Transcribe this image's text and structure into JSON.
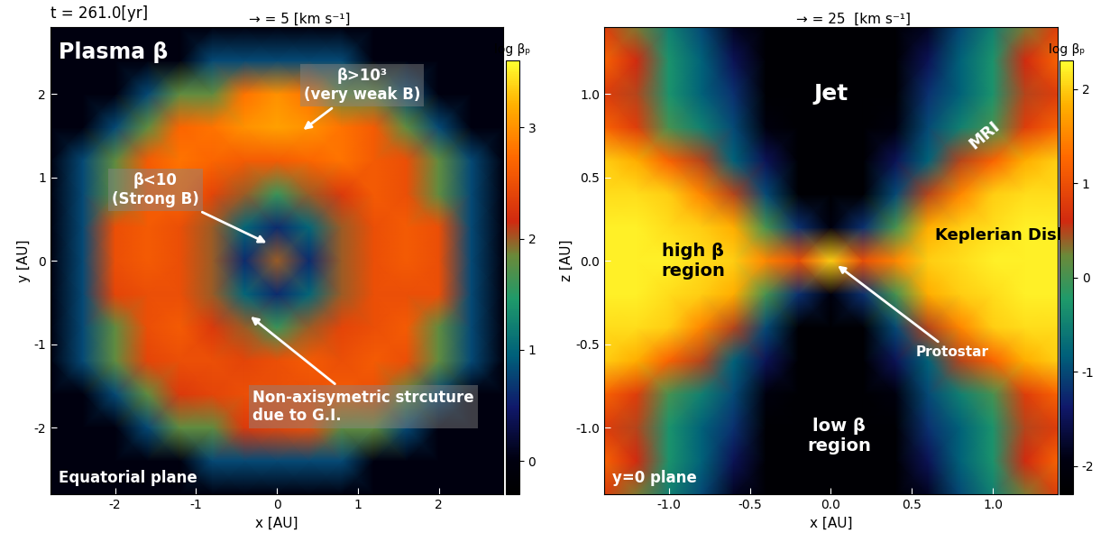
{
  "chart_data": [
    {
      "type": "heatmap",
      "time": "t = 261.0[yr]",
      "vector_key": "→ = 5 [km s⁻¹]",
      "xlabel": "x [AU]",
      "ylabel": "y [AU]",
      "xlim": [
        -2.8,
        2.8
      ],
      "ylim": [
        -2.8,
        2.8
      ],
      "xticks": [
        -2,
        -1,
        0,
        1,
        2
      ],
      "yticks": [
        -2,
        -1,
        0,
        1,
        2
      ],
      "x": [
        -2.8,
        -2.4,
        -2.0,
        -1.6,
        -1.2,
        -0.8,
        -0.4,
        0.0,
        0.4,
        0.8,
        1.2,
        1.6,
        2.0,
        2.4,
        2.8
      ],
      "y": [
        -2.8,
        -2.4,
        -2.0,
        -1.6,
        -1.2,
        -0.8,
        -0.4,
        0.0,
        0.4,
        0.8,
        1.2,
        1.6,
        2.0,
        2.4,
        2.8
      ],
      "cells": [
        [
          0,
          0,
          0,
          0,
          0,
          0,
          0,
          0,
          0,
          0,
          0,
          0,
          0,
          0,
          0
        ],
        [
          0,
          0,
          0,
          0,
          0,
          0.8,
          0.8,
          0.8,
          0.8,
          0.8,
          0,
          0,
          0,
          0,
          0
        ],
        [
          0,
          0,
          0,
          0.8,
          1.8,
          1.8,
          2.3,
          2.4,
          2.5,
          1.8,
          1.8,
          0.8,
          0,
          0,
          0
        ],
        [
          0,
          0,
          0.8,
          1.8,
          2.3,
          2.4,
          2.5,
          2.5,
          2.5,
          2.6,
          2.5,
          1.8,
          0.8,
          0,
          0
        ],
        [
          0,
          0.8,
          1.8,
          2.4,
          2.5,
          2.5,
          2.4,
          2.5,
          2.6,
          2.5,
          2.6,
          2.5,
          1.8,
          0.8,
          0
        ],
        [
          0,
          0.8,
          1.8,
          2.5,
          2.6,
          2.3,
          2.0,
          1.6,
          2.0,
          2.4,
          2.5,
          2.6,
          1.8,
          0.8,
          0
        ],
        [
          0,
          0.8,
          2.4,
          2.5,
          2.5,
          2.0,
          1.0,
          0.6,
          1.0,
          2.0,
          2.5,
          2.5,
          2.5,
          0.8,
          0
        ],
        [
          0,
          0.8,
          2.5,
          2.6,
          2.5,
          2.0,
          0.6,
          2.0,
          0.6,
          2.0,
          2.5,
          2.6,
          2.5,
          0.8,
          0
        ],
        [
          0,
          0.8,
          2.5,
          2.6,
          2.5,
          2.0,
          1.0,
          0.6,
          1.0,
          2.0,
          2.5,
          2.6,
          2.5,
          0.8,
          0
        ],
        [
          0,
          0.8,
          1.8,
          2.6,
          2.7,
          2.4,
          2.0,
          1.6,
          2.0,
          2.3,
          2.6,
          2.5,
          1.8,
          0.8,
          0
        ],
        [
          0,
          0.8,
          1.8,
          2.6,
          2.8,
          2.7,
          2.6,
          2.6,
          2.7,
          2.8,
          2.6,
          2.5,
          1.8,
          0.8,
          0
        ],
        [
          0,
          0,
          0.8,
          1.8,
          2.7,
          2.8,
          3.0,
          3.1,
          3.0,
          2.8,
          2.6,
          1.8,
          0.8,
          0,
          0
        ],
        [
          0,
          0,
          0,
          0.8,
          1.8,
          1.8,
          2.8,
          3.0,
          2.8,
          1.8,
          1.8,
          0.8,
          0,
          0,
          0
        ],
        [
          0,
          0,
          0,
          0,
          0,
          0.8,
          0.8,
          0.8,
          0.8,
          0.8,
          0,
          0,
          0,
          0,
          0
        ],
        [
          0,
          0,
          0,
          0,
          0,
          0,
          0,
          0,
          0,
          0,
          0,
          0,
          0,
          0,
          0
        ]
      ],
      "colorbar": {
        "label": "log βₚ",
        "range": [
          -0.3,
          3.6
        ],
        "ticks": [
          0,
          1,
          2,
          3
        ]
      },
      "annotations": [
        "Plasma β",
        "β>10³\n(very weak B)",
        "β<10\n(Strong B)",
        "Non-axisymetric strcuture\ndue to G.I.",
        "Equatorial plane"
      ]
    },
    {
      "type": "heatmap",
      "vector_key": "→ = 25  [km s⁻¹]",
      "xlabel": "x [AU]",
      "ylabel": "z [AU]",
      "xlim": [
        -1.4,
        1.4
      ],
      "ylim": [
        -1.4,
        1.4
      ],
      "xticks": [
        -1.0,
        -0.5,
        0.0,
        0.5,
        1.0
      ],
      "yticks": [
        -1.0,
        -0.5,
        0.0,
        0.5,
        1.0
      ],
      "x": [
        -1.4,
        -1.2,
        -1.0,
        -0.8,
        -0.6,
        -0.4,
        -0.2,
        0.0,
        0.2,
        0.4,
        0.6,
        0.8,
        1.0,
        1.2,
        1.4
      ],
      "y": [
        -1.4,
        -1.2,
        -1.0,
        -0.8,
        -0.6,
        -0.4,
        -0.2,
        0.0,
        0.2,
        0.4,
        0.6,
        0.8,
        1.0,
        1.2,
        1.4
      ],
      "cells": [
        [
          0.8,
          0.3,
          -0.5,
          -1.0,
          -1.8,
          -2.2,
          -2.2,
          -2.2,
          -2.2,
          -2.2,
          -1.8,
          -1.0,
          -0.5,
          0.3,
          0.8
        ],
        [
          1.2,
          0.6,
          -0.3,
          -0.8,
          -1.5,
          -2.2,
          -2.2,
          -2.2,
          -2.2,
          -2.2,
          -1.5,
          -0.8,
          -0.3,
          0.6,
          1.2
        ],
        [
          0.8,
          0.5,
          -0.3,
          -0.8,
          -1.2,
          -2.2,
          -2.2,
          -2.2,
          -2.2,
          -2.2,
          -1.2,
          -0.8,
          -0.3,
          0.5,
          0.8
        ],
        [
          1.2,
          0.8,
          0.0,
          -0.5,
          -1.0,
          -2.0,
          -2.2,
          -2.2,
          -2.2,
          -2.0,
          -1.0,
          -0.5,
          0.0,
          0.8,
          1.2
        ],
        [
          2.0,
          1.8,
          1.2,
          0.5,
          -0.8,
          -1.5,
          -2.2,
          -2.2,
          -2.2,
          -1.5,
          -0.8,
          0.5,
          1.2,
          1.8,
          2.0
        ],
        [
          2.1,
          2.1,
          2.0,
          1.5,
          0.5,
          -1.0,
          -2.2,
          -2.2,
          -2.2,
          -1.0,
          0.5,
          1.5,
          2.0,
          2.1,
          2.1
        ],
        [
          2.2,
          2.2,
          2.1,
          2.0,
          1.8,
          0.0,
          -1.2,
          -2.0,
          -1.2,
          0.0,
          1.8,
          2.0,
          2.1,
          2.2,
          2.2
        ],
        [
          2.2,
          2.2,
          2.2,
          2.1,
          2.0,
          1.5,
          1.0,
          2.0,
          1.0,
          1.5,
          2.0,
          2.1,
          2.2,
          2.2,
          2.2
        ],
        [
          2.2,
          2.2,
          2.1,
          2.0,
          1.8,
          0.0,
          -1.2,
          -2.0,
          -1.2,
          0.0,
          1.8,
          2.0,
          2.1,
          2.2,
          2.2
        ],
        [
          2.1,
          2.1,
          2.0,
          1.5,
          0.5,
          -1.0,
          -2.2,
          -2.2,
          -2.2,
          -1.0,
          0.5,
          1.5,
          2.0,
          2.1,
          2.1
        ],
        [
          2.0,
          1.8,
          1.2,
          0.5,
          -0.8,
          -1.5,
          -2.2,
          -2.2,
          -2.2,
          -1.5,
          -0.8,
          0.5,
          1.2,
          1.8,
          2.0
        ],
        [
          1.2,
          0.8,
          0.0,
          -0.5,
          -1.0,
          -2.0,
          -2.2,
          -2.2,
          -2.2,
          -2.0,
          -1.0,
          -0.5,
          0.0,
          0.8,
          1.2
        ],
        [
          0.8,
          0.5,
          -0.3,
          -0.8,
          -1.2,
          -2.2,
          -2.2,
          -2.2,
          -2.2,
          -2.2,
          -1.2,
          -0.8,
          -0.3,
          0.5,
          0.8
        ],
        [
          1.2,
          0.6,
          -0.3,
          -0.8,
          -1.5,
          -2.2,
          -2.2,
          -2.2,
          -2.2,
          -2.2,
          -1.5,
          -0.8,
          -0.3,
          0.6,
          1.2
        ],
        [
          0.8,
          0.3,
          -0.5,
          -1.0,
          -1.8,
          -2.2,
          -2.2,
          -2.2,
          -2.2,
          -2.2,
          -1.8,
          -1.0,
          -0.5,
          0.3,
          0.8
        ]
      ],
      "colorbar": {
        "label": "log βₚ",
        "range": [
          -2.3,
          2.3
        ],
        "ticks": [
          -2,
          -1,
          0,
          1,
          2
        ]
      },
      "annotations": [
        "Jet",
        "MRI",
        "Keplerian Disk",
        "high β\nregion",
        "low β\nregion",
        "Protostar",
        "y=0 plane"
      ]
    }
  ]
}
